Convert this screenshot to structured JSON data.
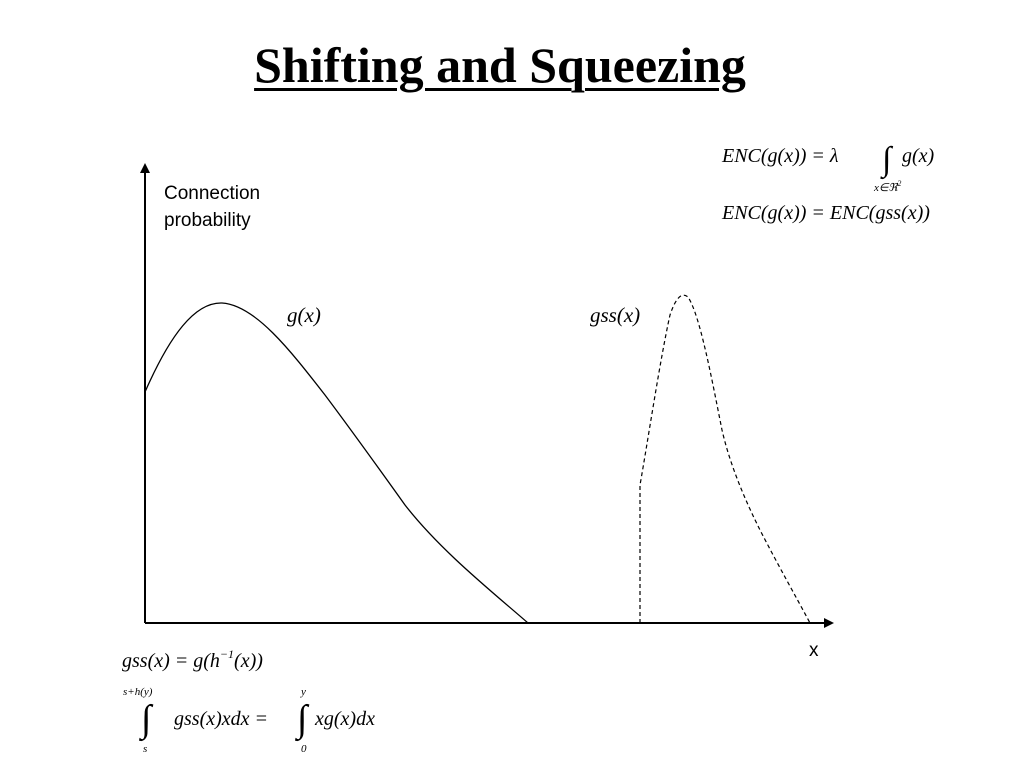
{
  "title": "Shifting and Squeezing",
  "axes": {
    "y_label_line1": "Connection",
    "y_label_line2": "probability",
    "x_label": "x"
  },
  "curves": [
    {
      "name": "g-curve",
      "label": "g(x)",
      "style": "solid"
    },
    {
      "name": "gss-curve",
      "label": "gss(x)",
      "style": "dashed"
    }
  ],
  "equations": {
    "enc_def": {
      "lhs": "ENC(g(x)) = λ",
      "integrand": "g(x)",
      "subscript_base": "x∈ℜ",
      "subscript_power": "2"
    },
    "enc_equal": "ENC(g(x)) = ENC(gss(x))",
    "gss_def": {
      "left": "gss(x) = g(h",
      "power": "−1",
      "right": "(x))"
    },
    "integral_eq": {
      "upper1": "s+h(y)",
      "lower1": "s",
      "integrand1": "gss(x)xdx =",
      "upper2": "y",
      "lower2": "0",
      "integrand2": "xg(x)dx"
    }
  }
}
